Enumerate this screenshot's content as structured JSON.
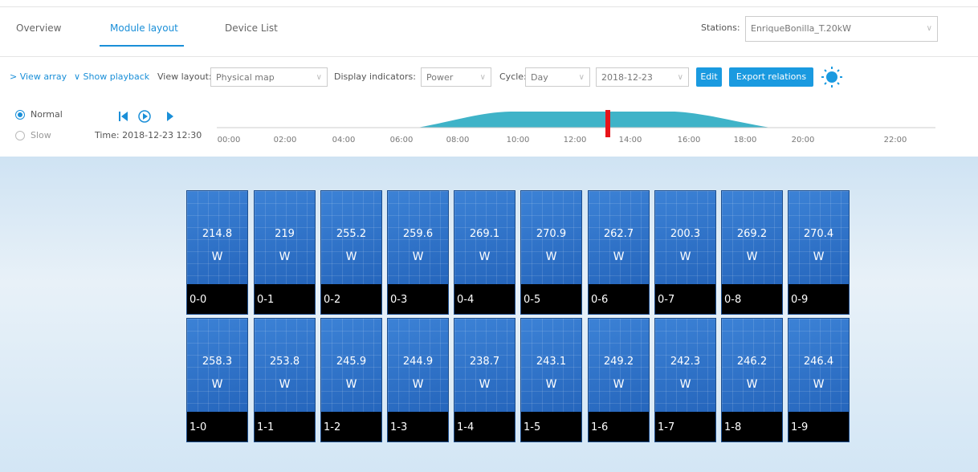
{
  "tabs": [
    "Overview",
    "Module layout",
    "Device List"
  ],
  "stations": {
    "label": "Stations:",
    "value": "EnriqueBonilla_T.20kW"
  },
  "toolbar": {
    "view_array": "> View array",
    "show_playback": "∨ Show playback",
    "view_layout_label": "View layout:",
    "view_layout_value": "Physical map",
    "indicators_label": "Display indicators:",
    "indicators_value": "Power",
    "cycle_label": "Cycle:",
    "cycle_value": "Day",
    "date": "2018-12-23",
    "edit": "Edit",
    "export": "Export relations"
  },
  "playback": {
    "normal": "Normal",
    "slow": "Slow",
    "time": "Time: 2018-12-23 12:30"
  },
  "timeline_ticks": [
    "00:00",
    "02:00",
    "04:00",
    "06:00",
    "08:00",
    "10:00",
    "12:00",
    "14:00",
    "16:00",
    "18:00",
    "20:00",
    "22:00"
  ],
  "unit": "W",
  "modules": [
    [
      {
        "value": "214.8",
        "id": "0-0"
      },
      {
        "value": "219",
        "id": "0-1"
      },
      {
        "value": "255.2",
        "id": "0-2"
      },
      {
        "value": "259.6",
        "id": "0-3"
      },
      {
        "value": "269.1",
        "id": "0-4"
      },
      {
        "value": "270.9",
        "id": "0-5"
      },
      {
        "value": "262.7",
        "id": "0-6"
      },
      {
        "value": "200.3",
        "id": "0-7"
      },
      {
        "value": "269.2",
        "id": "0-8"
      },
      {
        "value": "270.4",
        "id": "0-9"
      }
    ],
    [
      {
        "value": "258.3",
        "id": "1-0"
      },
      {
        "value": "253.8",
        "id": "1-1"
      },
      {
        "value": "245.9",
        "id": "1-2"
      },
      {
        "value": "244.9",
        "id": "1-3"
      },
      {
        "value": "238.7",
        "id": "1-4"
      },
      {
        "value": "243.1",
        "id": "1-5"
      },
      {
        "value": "249.2",
        "id": "1-6"
      },
      {
        "value": "242.3",
        "id": "1-7"
      },
      {
        "value": "246.2",
        "id": "1-8"
      },
      {
        "value": "246.4",
        "id": "1-9"
      }
    ]
  ]
}
